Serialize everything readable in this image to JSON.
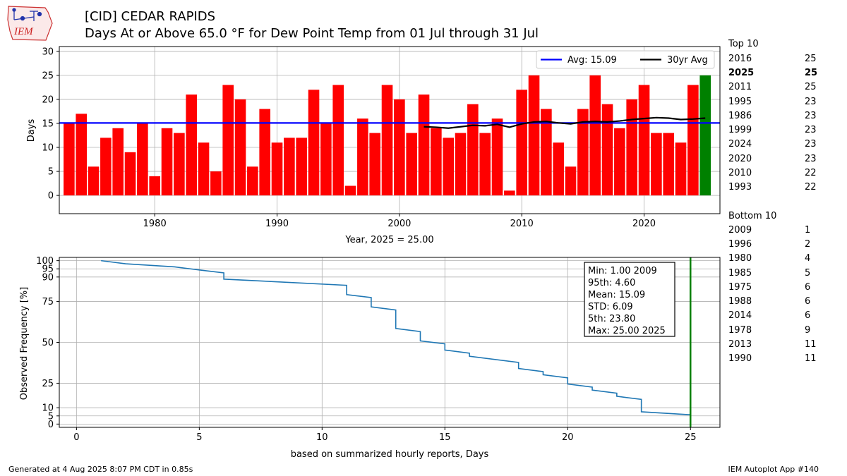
{
  "logo": {
    "text": "IEM"
  },
  "header": {
    "title_line1": "[CID] CEDAR RAPIDS",
    "title_line2": "Days At or Above 65.0 °F for Dew Point Temp from 01 Jul through 31 Jul"
  },
  "chart_data": [
    {
      "type": "bar",
      "xlabel": "Year, 2025 = 25.00",
      "ylabel": "Days",
      "xlim": [
        1972.2,
        2026.2
      ],
      "ylim": [
        -3.8,
        31
      ],
      "xticks": [
        1980,
        1990,
        2000,
        2010,
        2020
      ],
      "yticks": [
        0,
        5,
        10,
        15,
        20,
        25,
        30
      ],
      "grid": true,
      "legend_position": "top-right",
      "years": [
        1973,
        1974,
        1975,
        1976,
        1977,
        1978,
        1979,
        1980,
        1981,
        1982,
        1983,
        1984,
        1985,
        1986,
        1987,
        1988,
        1989,
        1990,
        1991,
        1992,
        1993,
        1994,
        1995,
        1996,
        1997,
        1998,
        1999,
        2000,
        2001,
        2002,
        2003,
        2004,
        2005,
        2006,
        2007,
        2008,
        2009,
        2010,
        2011,
        2012,
        2013,
        2014,
        2015,
        2016,
        2017,
        2018,
        2019,
        2020,
        2021,
        2022,
        2023,
        2024,
        2025
      ],
      "values": [
        15,
        17,
        6,
        12,
        14,
        9,
        15,
        4,
        14,
        13,
        21,
        11,
        5,
        23,
        20,
        6,
        18,
        11,
        12,
        12,
        22,
        15,
        23,
        2,
        16,
        13,
        23,
        20,
        13,
        21,
        14,
        12,
        13,
        19,
        13,
        16,
        1,
        22,
        25,
        18,
        11,
        6,
        18,
        25,
        19,
        14,
        20,
        23,
        13,
        13,
        11,
        23,
        25
      ],
      "highlight_year": 2025,
      "colors": {
        "bar": "#ff0000",
        "highlight": "#008000",
        "avg_line": "#0000ff",
        "rolling_line": "#000000"
      },
      "average": {
        "label": "Avg: 15.09",
        "value": 15.09
      },
      "rolling_average": {
        "label": "30yr Avg",
        "x": [
          2002,
          2003,
          2004,
          2005,
          2006,
          2007,
          2008,
          2009,
          2010,
          2011,
          2012,
          2013,
          2014,
          2015,
          2016,
          2017,
          2018,
          2019,
          2020,
          2021,
          2022,
          2023,
          2024,
          2025
        ],
        "y": [
          14.3,
          14.2,
          14.0,
          14.3,
          14.6,
          14.5,
          14.8,
          14.2,
          14.9,
          15.3,
          15.4,
          15.1,
          14.9,
          15.3,
          15.4,
          15.3,
          15.5,
          15.8,
          16.0,
          16.2,
          16.1,
          15.8,
          15.9,
          16.1
        ]
      }
    },
    {
      "type": "line",
      "xlabel": "based on summarized hourly reports, Days",
      "ylabel": "Observed Frequency [%]",
      "xlim": [
        -0.7,
        26.2
      ],
      "ylim": [
        -2,
        102
      ],
      "xticks": [
        0,
        5,
        10,
        15,
        20,
        25
      ],
      "yticks": [
        0,
        5,
        10,
        25,
        50,
        75,
        90,
        95,
        100
      ],
      "grid": true,
      "line_color": "#1f77b4",
      "marker_line": {
        "x": 25,
        "color": "#008000"
      },
      "steps": [
        [
          1,
          100
        ],
        [
          2,
          98.1
        ],
        [
          4,
          96.2
        ],
        [
          5,
          94.3
        ],
        [
          6,
          92.5
        ],
        [
          6,
          88.7
        ],
        [
          11,
          84.9
        ],
        [
          11,
          79.2
        ],
        [
          12,
          77.4
        ],
        [
          12,
          71.7
        ],
        [
          13,
          69.8
        ],
        [
          13,
          58.5
        ],
        [
          14,
          56.6
        ],
        [
          14,
          50.9
        ],
        [
          15,
          49.1
        ],
        [
          15,
          45.3
        ],
        [
          16,
          43.4
        ],
        [
          16,
          41.5
        ],
        [
          18,
          37.7
        ],
        [
          18,
          34.0
        ],
        [
          19,
          32.1
        ],
        [
          19,
          30.2
        ],
        [
          20,
          28.3
        ],
        [
          20,
          24.5
        ],
        [
          21,
          22.6
        ],
        [
          21,
          20.8
        ],
        [
          22,
          18.9
        ],
        [
          22,
          17.0
        ],
        [
          23,
          15.1
        ],
        [
          23,
          7.5
        ],
        [
          25,
          5.7
        ]
      ],
      "stats_box": [
        "Min: 1.00 2009",
        "95th: 4.60",
        "Mean: 15.09",
        "STD: 6.09",
        "5th: 23.80",
        "Max: 25.00 2025"
      ]
    }
  ],
  "top10": {
    "heading": "Top 10",
    "rows": [
      {
        "year": "2016",
        "value": "25",
        "bold": false
      },
      {
        "year": "2025",
        "value": "25",
        "bold": true
      },
      {
        "year": "2011",
        "value": "25",
        "bold": false
      },
      {
        "year": "1995",
        "value": "23",
        "bold": false
      },
      {
        "year": "1986",
        "value": "23",
        "bold": false
      },
      {
        "year": "1999",
        "value": "23",
        "bold": false
      },
      {
        "year": "2024",
        "value": "23",
        "bold": false
      },
      {
        "year": "2020",
        "value": "23",
        "bold": false
      },
      {
        "year": "2010",
        "value": "22",
        "bold": false
      },
      {
        "year": "1993",
        "value": "22",
        "bold": false
      }
    ]
  },
  "bottom10": {
    "heading": "Bottom 10",
    "rows": [
      {
        "year": "2009",
        "value": "1"
      },
      {
        "year": "1996",
        "value": "2"
      },
      {
        "year": "1980",
        "value": "4"
      },
      {
        "year": "1985",
        "value": "5"
      },
      {
        "year": "1975",
        "value": "6"
      },
      {
        "year": "1988",
        "value": "6"
      },
      {
        "year": "2014",
        "value": "6"
      },
      {
        "year": "1978",
        "value": "9"
      },
      {
        "year": "2013",
        "value": "11"
      },
      {
        "year": "1990",
        "value": "11"
      }
    ]
  },
  "footer": {
    "left": "Generated at 4 Aug 2025 8:07 PM CDT in 0.85s",
    "right": "IEM Autoplot App #140"
  }
}
